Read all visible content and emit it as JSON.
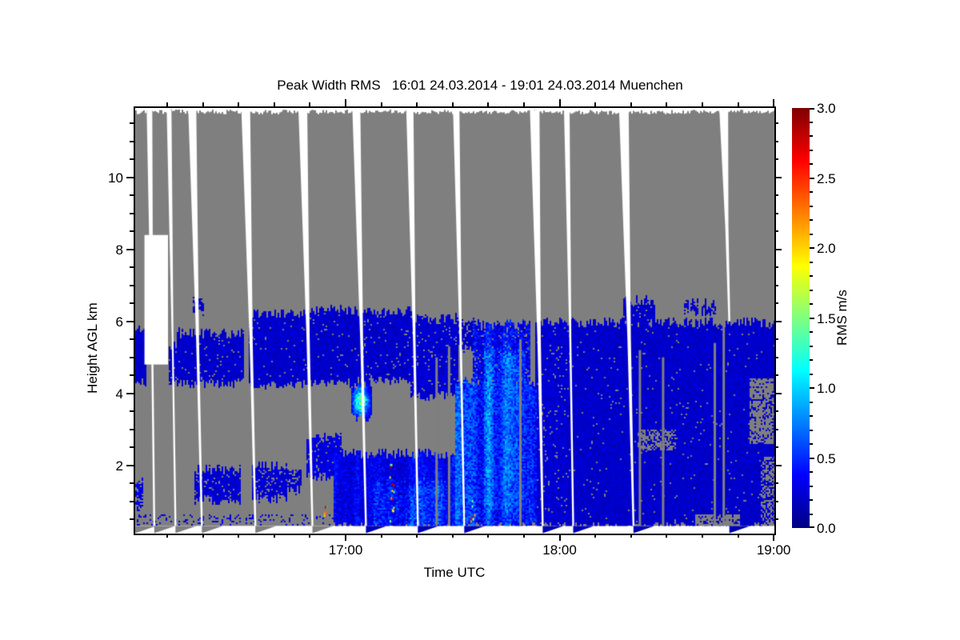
{
  "chart_data": {
    "type": "heatmap",
    "title": "Peak Width RMS   16:01 24.03.2014 - 19:01 24.03.2014 Muenchen",
    "xlabel": "Time UTC",
    "ylabel": "Height AGL km",
    "x_axis": {
      "start_label": "16:01",
      "end_label": "19:01",
      "range_minutes": [
        1,
        180.2
      ],
      "major_ticks": [
        {
          "minutes": 60,
          "label": "17:00"
        },
        {
          "minutes": 120,
          "label": "18:00"
        },
        {
          "minutes": 180,
          "label": "19:00"
        }
      ],
      "minor_tick_step_minutes": 10,
      "minor_tick_range_minutes": [
        10,
        170
      ]
    },
    "y_axis": {
      "range_km": [
        0.1,
        11.93
      ],
      "major_ticks": [
        {
          "km": 2,
          "label": "2"
        },
        {
          "km": 4,
          "label": "4"
        },
        {
          "km": 6,
          "label": "6"
        },
        {
          "km": 8,
          "label": "8"
        },
        {
          "km": 10,
          "label": "10"
        }
      ],
      "minor_tick_step_km": 0.5,
      "minor_tick_range_km": [
        0.5,
        11.5
      ]
    },
    "colorbar": {
      "label": "RMS m/s",
      "range": [
        0,
        3
      ],
      "major_ticks": [
        {
          "v": 0.0,
          "label": "0.0"
        },
        {
          "v": 0.5,
          "label": "0.5"
        },
        {
          "v": 1.0,
          "label": "1.0"
        },
        {
          "v": 1.5,
          "label": "1.5"
        },
        {
          "v": 2.0,
          "label": "2.0"
        },
        {
          "v": 2.5,
          "label": "2.5"
        },
        {
          "v": 3.0,
          "label": "3.0"
        }
      ],
      "minor_tick_step": 0.1,
      "colormap": "jet",
      "stops": [
        [
          0.0,
          [
            0,
            0,
            131
          ]
        ],
        [
          0.125,
          [
            0,
            0,
            255
          ]
        ],
        [
          0.375,
          [
            0,
            255,
            255
          ]
        ],
        [
          0.625,
          [
            255,
            255,
            0
          ]
        ],
        [
          0.875,
          [
            255,
            0,
            0
          ]
        ],
        [
          1.0,
          [
            128,
            0,
            0
          ]
        ]
      ]
    },
    "colors": {
      "no_data_gray": "#7f7f7f",
      "background": "#ffffff",
      "axis": "#000000",
      "scan_gap": "#ffffff",
      "wedge_blue": "#0000b4"
    },
    "field": {
      "top_km": 11.82,
      "bottom_km": 0.31
    },
    "scan_gaps": [
      {
        "t": 5,
        "w": 7,
        "lean": 6,
        "wedge": "gray"
      },
      {
        "t": 10.5,
        "w": 6,
        "lean": 8,
        "wedge": "gray"
      },
      {
        "t": 17,
        "w": 10,
        "lean": 12,
        "wedge": "gray"
      },
      {
        "t": 32,
        "w": 11,
        "lean": 12,
        "wedge": "gray"
      },
      {
        "t": 48,
        "w": 11,
        "lean": 12,
        "wedge": "gray"
      },
      {
        "t": 63,
        "w": 10,
        "lean": 12,
        "wedge": "blue"
      },
      {
        "t": 78,
        "w": 9,
        "lean": 10,
        "wedge": "blue"
      },
      {
        "t": 91,
        "w": 8,
        "lean": 10,
        "wedge": "blue"
      },
      {
        "t": 113,
        "w": 12,
        "lean": 10,
        "wedge": "blue"
      },
      {
        "t": 122,
        "w": 7,
        "lean": 8,
        "wedge": "blue"
      },
      {
        "t": 138,
        "w": 12,
        "lean": 12,
        "wedge": "blue"
      },
      {
        "t": 166,
        "w": 11,
        "lean": 7,
        "wedge": "blue",
        "white_to_km": 6.0
      }
    ],
    "extra_wedges": [
      {
        "t": 1,
        "lean": 0,
        "wedge": "gray"
      }
    ],
    "white_regions": [
      {
        "t": [
          3.6,
          10.2
        ],
        "h": [
          4.8,
          8.4
        ]
      }
    ],
    "gray_lines": [
      {
        "t": 85.5,
        "h": [
          0.31,
          5.0
        ]
      },
      {
        "t": 89,
        "h": [
          0.31,
          5.3
        ]
      },
      {
        "t": 109,
        "h": [
          0.31,
          5.5
        ]
      },
      {
        "t": 142.5,
        "h": [
          0.31,
          5.2
        ]
      },
      {
        "t": 149,
        "h": [
          0.31,
          5.0
        ]
      },
      {
        "t": 163.5,
        "h": [
          0.31,
          5.4
        ]
      },
      {
        "t": 166,
        "h": [
          0.31,
          6.0
        ]
      }
    ],
    "gray_holes": [
      {
        "t": [
          142,
          152
        ],
        "h": [
          2.45,
          2.95
        ],
        "density": 0.55
      },
      {
        "t": [
          173.5,
          179.5
        ],
        "h": [
          2.6,
          4.4
        ],
        "density": 0.75
      },
      {
        "t": [
          158,
          170
        ],
        "h": [
          0.31,
          0.62
        ],
        "density": 0.7
      },
      {
        "t": [
          176.5,
          180.2
        ],
        "h": [
          0.31,
          2.2
        ],
        "density": 0.5
      }
    ],
    "patches": [
      {
        "t": [
          1,
          3.6
        ],
        "h": [
          4.3,
          5.8
        ],
        "v": 0.2,
        "var": 0.15,
        "fill": 1
      },
      {
        "t": [
          1,
          2.5
        ],
        "h": [
          0.8,
          1.6
        ],
        "v": 0.25,
        "var": 0.2,
        "fill": 0.7
      },
      {
        "t": [
          10.5,
          13
        ],
        "h": [
          4.35,
          5.3
        ],
        "v": 0.2,
        "var": 0.15,
        "fill": 0.85
      },
      {
        "t": [
          13,
          31
        ],
        "h": [
          4.3,
          5.65
        ],
        "v": 0.2,
        "var": 0.15,
        "fill": 0.95
      },
      {
        "t": [
          17.5,
          19.5
        ],
        "h": [
          6.3,
          6.55
        ],
        "v": 0.2,
        "var": 0.1,
        "fill": 0.7
      },
      {
        "t": [
          18,
          30
        ],
        "h": [
          1.05,
          1.85
        ],
        "v": 0.22,
        "var": 0.18,
        "fill": 0.88
      },
      {
        "t": [
          33,
          47.5
        ],
        "h": [
          4.25,
          6.2
        ],
        "v": 0.2,
        "var": 0.15,
        "fill": 0.97
      },
      {
        "t": [
          34,
          43
        ],
        "h": [
          1.1,
          1.95
        ],
        "v": 0.22,
        "var": 0.18,
        "fill": 0.88
      },
      {
        "t": [
          44,
          47
        ],
        "h": [
          1.3,
          1.8
        ],
        "v": 0.2,
        "var": 0.15,
        "fill": 0.8
      },
      {
        "t": [
          48.5,
          62.5
        ],
        "h": [
          4.3,
          6.3
        ],
        "v": 0.2,
        "var": 0.15,
        "fill": 0.97
      },
      {
        "t": [
          49,
          58
        ],
        "h": [
          1.7,
          2.75
        ],
        "v": 0.25,
        "var": 0.2,
        "fill": 0.9
      },
      {
        "t": [
          57,
          91
        ],
        "h": [
          0.31,
          2.3
        ],
        "v": 0.3,
        "var": 0.3,
        "fill": 1,
        "style": "streaky"
      },
      {
        "t": [
          68,
          88
        ],
        "h": [
          0.31,
          1.5
        ],
        "v": 0.45,
        "var": 0.45,
        "fill": 0.85,
        "style": "streaky"
      },
      {
        "t": [
          62,
          66.5
        ],
        "h": [
          3.35,
          4.2
        ],
        "v": 0.85,
        "var": 0.4,
        "fill": 1,
        "style": "blob"
      },
      {
        "t": [
          63.5,
          78
        ],
        "h": [
          4.4,
          6.25
        ],
        "v": 0.2,
        "var": 0.15,
        "fill": 0.95
      },
      {
        "t": [
          78.5,
          91
        ],
        "h": [
          3.95,
          6.05
        ],
        "v": 0.22,
        "var": 0.15,
        "fill": 0.95
      },
      {
        "t": [
          91.5,
          97
        ],
        "h": [
          5.25,
          5.95
        ],
        "v": 0.18,
        "var": 0.12,
        "fill": 0.85
      },
      {
        "t": [
          91,
          113
        ],
        "h": [
          0.31,
          4.3
        ],
        "v": 0.45,
        "var": 0.45,
        "fill": 1,
        "style": "streaky"
      },
      {
        "t": [
          96,
          111
        ],
        "h": [
          4.3,
          5.9
        ],
        "v": 0.35,
        "var": 0.4,
        "fill": 0.9,
        "style": "streaky"
      },
      {
        "t": [
          99,
          110
        ],
        "h": [
          0.8,
          5.2
        ],
        "v": 0.55,
        "var": 0.5,
        "fill": 0.92,
        "style": "streaky"
      },
      {
        "t": [
          113.5,
          121.5
        ],
        "h": [
          0.31,
          6.0
        ],
        "v": 0.22,
        "var": 0.15,
        "fill": 0.95
      },
      {
        "t": [
          122.5,
          180.2
        ],
        "h": [
          0.31,
          5.95
        ],
        "v": 0.2,
        "var": 0.14,
        "fill": 0.98
      },
      {
        "t": [
          138,
          146
        ],
        "h": [
          5.9,
          6.55
        ],
        "v": 0.2,
        "var": 0.12,
        "fill": 0.9
      },
      {
        "t": [
          155,
          158
        ],
        "h": [
          6.25,
          6.5
        ],
        "v": 0.2,
        "var": 0.1,
        "fill": 0.8
      },
      {
        "t": [
          160,
          163
        ],
        "h": [
          6.25,
          6.45
        ],
        "v": 0.2,
        "var": 0.1,
        "fill": 0.8
      },
      {
        "t": [
          1,
          57
        ],
        "h": [
          0.35,
          0.62
        ],
        "v": 0.25,
        "var": 0.3,
        "fill": 0.16,
        "style": "dots"
      }
    ],
    "outliers": [
      {
        "t": 72.8,
        "h": [
          0.45,
          2.2
        ],
        "count": 14
      },
      {
        "t": 54.2,
        "h": [
          0.4,
          0.9
        ],
        "count": 5
      },
      {
        "t": 95.5,
        "h": [
          0.4,
          1.2
        ],
        "count": 6
      }
    ]
  }
}
